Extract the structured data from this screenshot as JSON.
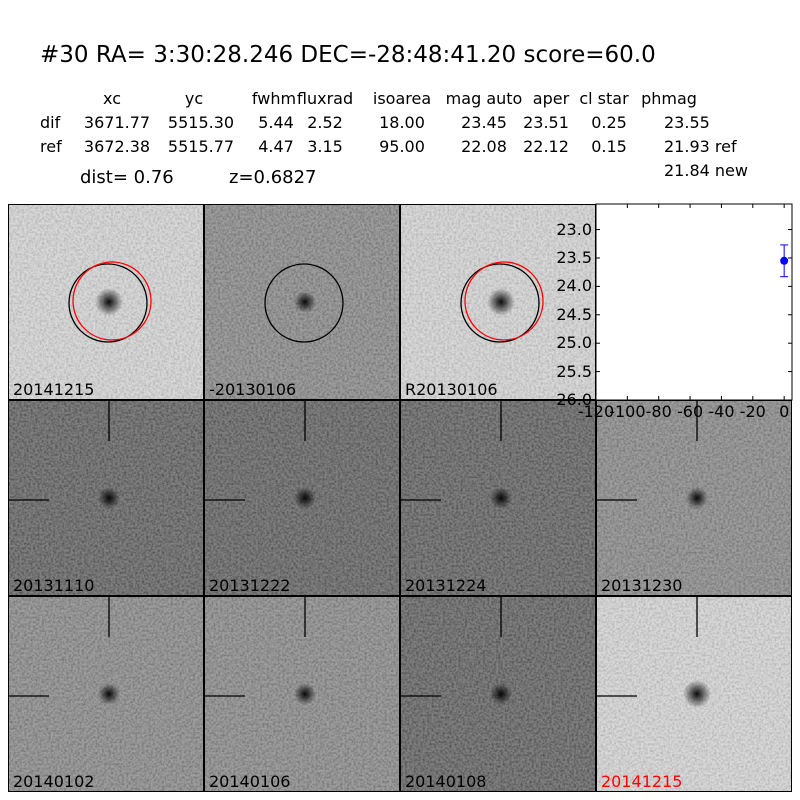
{
  "title": "#30   RA= 3:30:28.246 DEC=-28:48:41.20      score=60.0",
  "table": {
    "columns": [
      "xc",
      "yc",
      "fwhm",
      "fluxrad",
      "isoarea",
      "mag auto",
      "aper",
      "cl star",
      "phmag"
    ],
    "rows": [
      {
        "label": "dif",
        "values": [
          "3671.77",
          "5515.30",
          "5.44",
          "2.52",
          "18.00",
          "23.45",
          "23.51",
          "0.25",
          "23.55"
        ]
      },
      {
        "label": "ref",
        "values": [
          "3672.38",
          "5515.77",
          "4.47",
          "3.15",
          "95.00",
          "22.08",
          "22.12",
          "0.15",
          "21.93 ref"
        ]
      }
    ],
    "extra_phmag": "21.84 new",
    "dist": "dist=  0.76",
    "z": "z=0.6827"
  },
  "panels": [
    {
      "label": "20141215",
      "bg": "light",
      "circles": [
        "black",
        "red"
      ]
    },
    {
      "label": "-20130106",
      "bg": "mid",
      "circles": [
        "black"
      ]
    },
    {
      "label": "R20130106",
      "bg": "light",
      "circles": [
        "black",
        "red"
      ]
    },
    {
      "label": "20131110",
      "bg": "dark",
      "crosshair": true
    },
    {
      "label": "20131222",
      "bg": "dark",
      "crosshair": true
    },
    {
      "label": "20131224",
      "bg": "dark",
      "crosshair": true
    },
    {
      "label": "20131230",
      "bg": "mid",
      "crosshair": true
    },
    {
      "label": "20140102",
      "bg": "mid",
      "crosshair": true
    },
    {
      "label": "20140106",
      "bg": "mid",
      "crosshair": true
    },
    {
      "label": "20140108",
      "bg": "dark",
      "crosshair": true
    },
    {
      "label": "20141215",
      "bg": "light",
      "crosshair": true,
      "label_color": "#ff0000"
    }
  ],
  "chart_data": {
    "type": "scatter",
    "x": [
      0
    ],
    "y": [
      23.55
    ],
    "yerr": [
      0.28
    ],
    "color": "#0000ff",
    "xlim": [
      -120,
      5
    ],
    "ylim": [
      26.0,
      22.55
    ],
    "y_inverted": true,
    "xticks": [
      "-120",
      "-100",
      "-80",
      "-60",
      "-40",
      "-20",
      "0"
    ],
    "yticks": [
      "23.0",
      "23.5",
      "24.0",
      "24.5",
      "25.0",
      "25.5",
      "26.0"
    ],
    "grid": false
  }
}
